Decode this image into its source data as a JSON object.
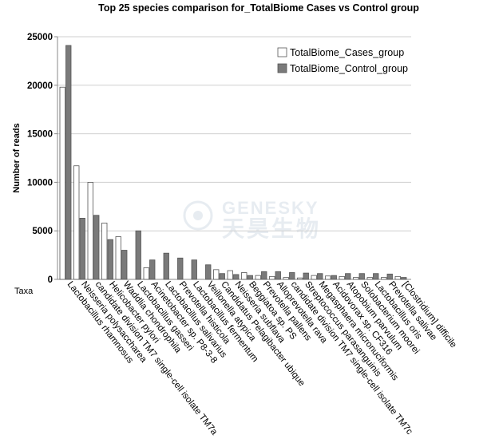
{
  "chart_data": {
    "type": "bar",
    "title": "Top 25 species comparison for_TotalBiome Cases vs Control group",
    "ylabel": "Number of reads",
    "xlabel": "Taxa",
    "ylim": [
      0,
      25000
    ],
    "y_ticks": [
      0,
      5000,
      10000,
      15000,
      20000,
      25000
    ],
    "grid": true,
    "legend_position": "top-right",
    "categories": [
      "Lactobacillus rhamnosus",
      "Neisseria polysaccharea",
      "candidate division TM7 single-cell isolate TM7a",
      "Helicobacter pylori",
      "Waddlia chondrophila",
      "Lactobacillus gasseri",
      "Acinetobacter sp. P8-3-8",
      "Lactobacillus salivarius",
      "Prevotella histicola",
      "Lactobacillus fermentum",
      "Veillonella atypica",
      "Candidatus Pelagibacter ubique",
      "Neisseria subflava",
      "Beggiatoa sp. PS",
      "Prevotella pallens",
      "Alloprevotella rava",
      "candidate division TM7 single-cell isolate TM7c",
      "Streptococcus parasanguinis",
      "Megasphaera micronuciformis",
      "Acidovorax sp. CF316",
      "Atopobium parvulum",
      "Solobacterium moorei",
      "Lactobacillus oris",
      "Prevotella salivae",
      "[Clostridium] difficile"
    ],
    "series": [
      {
        "name": "TotalBiome_Cases_group",
        "color": "#ffffff",
        "values": [
          19800,
          11700,
          10000,
          5800,
          4400,
          0,
          1200,
          0,
          0,
          0,
          0,
          1000,
          900,
          700,
          400,
          300,
          200,
          150,
          400,
          350,
          300,
          200,
          200,
          200,
          300
        ]
      },
      {
        "name": "TotalBiome_Control_group",
        "color": "#7a7a7a",
        "values": [
          24100,
          6300,
          6600,
          4100,
          3000,
          5000,
          2000,
          2700,
          2200,
          2000,
          1500,
          600,
          500,
          400,
          800,
          800,
          700,
          650,
          600,
          400,
          600,
          600,
          600,
          550,
          200
        ]
      }
    ]
  },
  "watermark": {
    "en": "GENESKY",
    "cn": "天昊生物",
    "color": "#d4dde6"
  }
}
